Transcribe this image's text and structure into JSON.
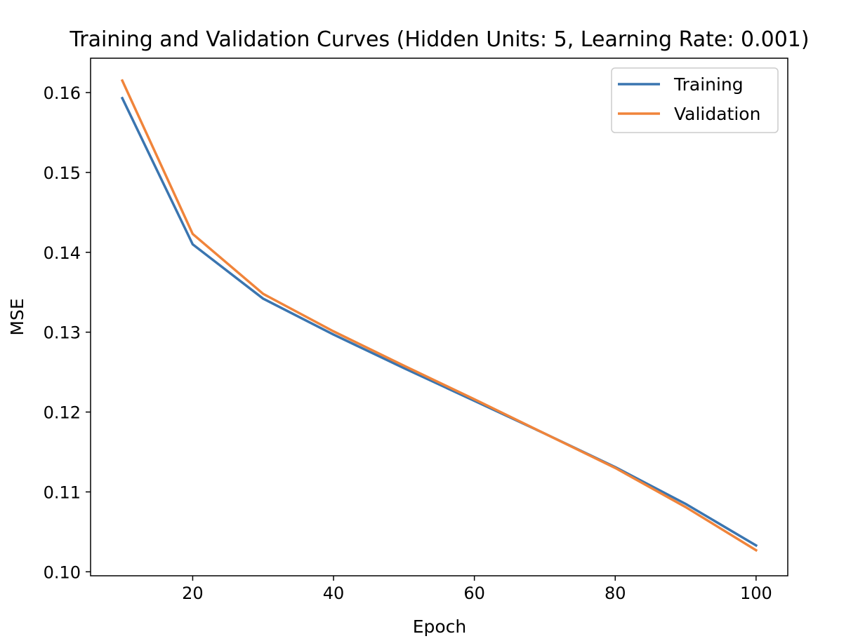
{
  "chart_data": {
    "type": "line",
    "title": "Training and Validation Curves (Hidden Units: 5, Learning Rate: 0.001)",
    "xlabel": "Epoch",
    "ylabel": "MSE",
    "x": [
      10,
      20,
      30,
      40,
      50,
      60,
      70,
      80,
      90,
      100
    ],
    "xlim": [
      5.5,
      104.5
    ],
    "ylim": [
      0.0995,
      0.1643
    ],
    "xticks": [
      20,
      40,
      60,
      80,
      100
    ],
    "xtick_labels": [
      "20",
      "40",
      "60",
      "80",
      "100"
    ],
    "yticks": [
      0.1,
      0.11,
      0.12,
      0.13,
      0.14,
      0.15,
      0.16
    ],
    "ytick_labels": [
      "0.10",
      "0.11",
      "0.12",
      "0.13",
      "0.14",
      "0.15",
      "0.16"
    ],
    "grid": false,
    "legend_position": "top-right",
    "series": [
      {
        "name": "Training",
        "color": "#3a75b0",
        "values": [
          0.1593,
          0.141,
          0.1342,
          0.1297,
          0.1255,
          0.1214,
          0.1173,
          0.1131,
          0.1085,
          0.1033
        ]
      },
      {
        "name": "Validation",
        "color": "#f0843a",
        "values": [
          0.1615,
          0.1423,
          0.1348,
          0.1301,
          0.1258,
          0.1216,
          0.1173,
          0.113,
          0.1081,
          0.1027
        ]
      }
    ]
  }
}
